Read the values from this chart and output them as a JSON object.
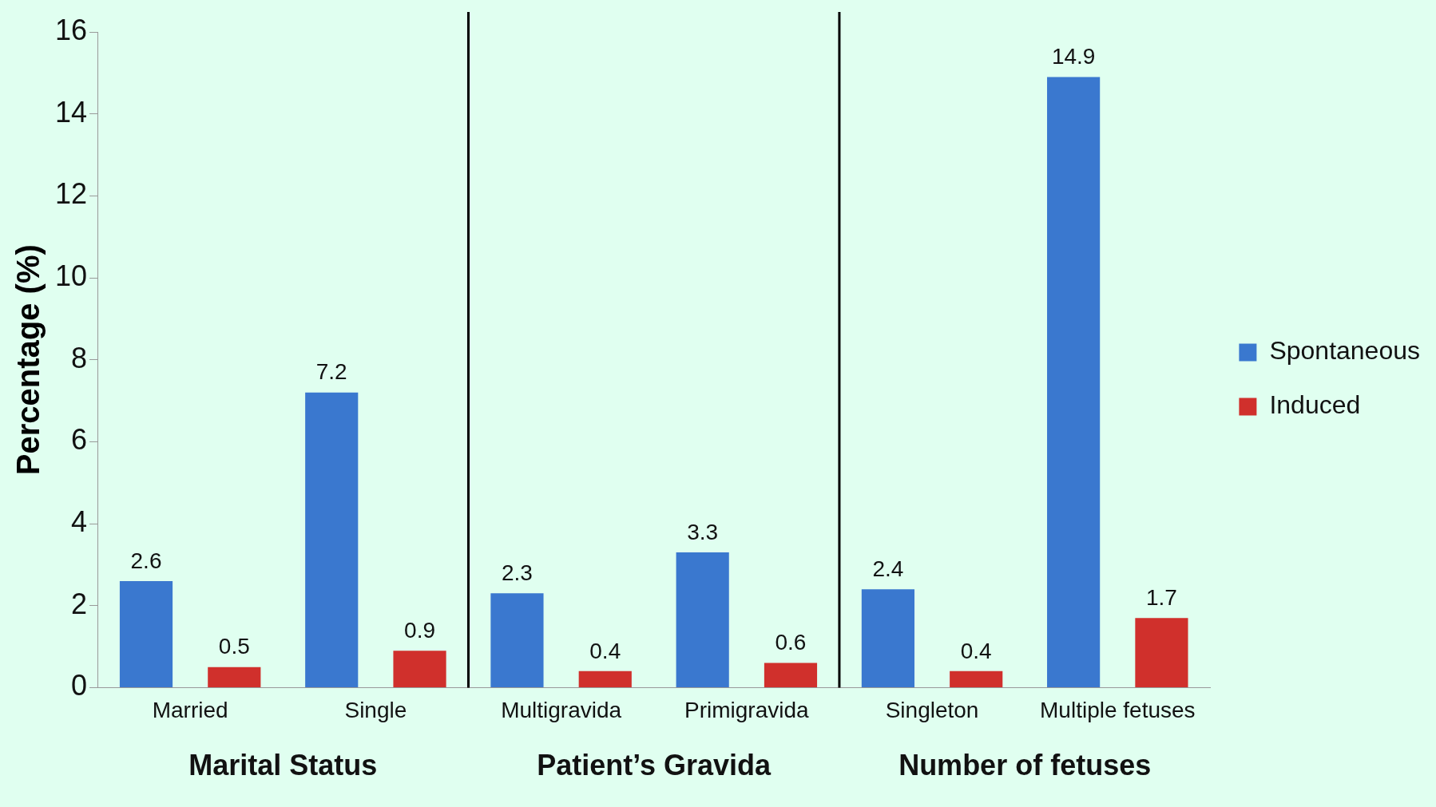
{
  "chart_data": {
    "type": "bar",
    "ylabel": "Percentage (%)",
    "categories": [
      "Married",
      "Single",
      "Multigravida",
      "Primigravida",
      "Singleton",
      "Multiple fetuses"
    ],
    "series": [
      {
        "name": "Spontaneous",
        "color": "#3a78cf",
        "values": [
          2.6,
          7.2,
          2.3,
          3.3,
          2.4,
          14.9
        ]
      },
      {
        "name": "Induced",
        "color": "#d0302c",
        "values": [
          0.5,
          0.9,
          0.4,
          0.6,
          0.4,
          1.7
        ]
      }
    ],
    "ylim": [
      0,
      16
    ],
    "yticks": [
      0,
      2,
      4,
      6,
      8,
      10,
      12,
      14,
      16
    ],
    "grid": false,
    "legend": "right",
    "data_labels": true,
    "annotations": [
      "Marital Status",
      "Patient’s Gravida",
      "Number of fetuses"
    ]
  }
}
